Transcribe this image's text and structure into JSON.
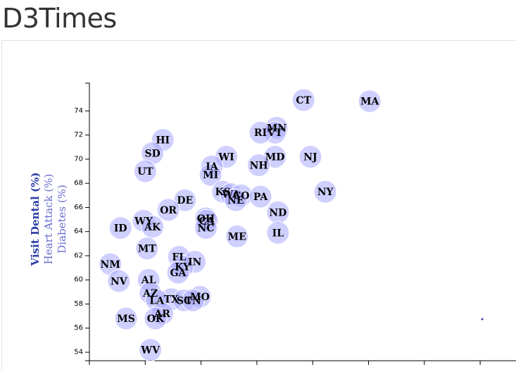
{
  "page": {
    "title": "D3Times"
  },
  "chart_data": {
    "type": "scatter",
    "title": "",
    "xlabel": "",
    "ylabels": [
      {
        "label": "Visit Dental (%)",
        "active": true
      },
      {
        "label": "Heart Attack (%)",
        "active": false
      },
      {
        "label": "Diabetes (%)",
        "active": false
      }
    ],
    "ylim": [
      53.3,
      76.3
    ],
    "xlim": [
      0,
      10
    ],
    "yticks": [
      54,
      56,
      58,
      60,
      62,
      64,
      66,
      68,
      70,
      72,
      74
    ],
    "xticks_count": 8,
    "grid": false,
    "marker_color": "#aaaaff",
    "points": [
      {
        "label": "CT",
        "x": 5.02,
        "y": 74.9
      },
      {
        "label": "MA",
        "x": 6.57,
        "y": 74.8
      },
      {
        "label": "MN",
        "x": 4.39,
        "y": 72.6
      },
      {
        "label": "VT",
        "x": 4.35,
        "y": 72.2
      },
      {
        "label": "RI",
        "x": 4.01,
        "y": 72.2
      },
      {
        "label": "HI",
        "x": 1.72,
        "y": 71.6
      },
      {
        "label": "SD",
        "x": 1.48,
        "y": 70.5
      },
      {
        "label": "MD",
        "x": 4.35,
        "y": 70.2
      },
      {
        "label": "NJ",
        "x": 5.18,
        "y": 70.2
      },
      {
        "label": "WI",
        "x": 3.21,
        "y": 70.2
      },
      {
        "label": "IA",
        "x": 2.87,
        "y": 69.4
      },
      {
        "label": "NH",
        "x": 3.97,
        "y": 69.5
      },
      {
        "label": "UT",
        "x": 1.31,
        "y": 69.0
      },
      {
        "label": "MI",
        "x": 2.84,
        "y": 68.7
      },
      {
        "label": "NY",
        "x": 5.53,
        "y": 67.3
      },
      {
        "label": "KS",
        "x": 3.13,
        "y": 67.3
      },
      {
        "label": "WA",
        "x": 3.32,
        "y": 67.1
      },
      {
        "label": "CO",
        "x": 3.56,
        "y": 67.0
      },
      {
        "label": "PA",
        "x": 4.01,
        "y": 66.9
      },
      {
        "label": "NE",
        "x": 3.43,
        "y": 66.6
      },
      {
        "label": "DE",
        "x": 2.24,
        "y": 66.6
      },
      {
        "label": "OR",
        "x": 1.85,
        "y": 65.8
      },
      {
        "label": "ND",
        "x": 4.42,
        "y": 65.6
      },
      {
        "label": "OH",
        "x": 2.73,
        "y": 65.1
      },
      {
        "label": "CA",
        "x": 2.75,
        "y": 64.9
      },
      {
        "label": "WY",
        "x": 1.27,
        "y": 64.9
      },
      {
        "label": "AK",
        "x": 1.48,
        "y": 64.4
      },
      {
        "label": "ID",
        "x": 0.73,
        "y": 64.3
      },
      {
        "label": "NC",
        "x": 2.73,
        "y": 64.3
      },
      {
        "label": "IL",
        "x": 4.42,
        "y": 63.9
      },
      {
        "label": "ME",
        "x": 3.46,
        "y": 63.6
      },
      {
        "label": "MT",
        "x": 1.35,
        "y": 62.6
      },
      {
        "label": "FL",
        "x": 2.1,
        "y": 61.9
      },
      {
        "label": "IN",
        "x": 2.47,
        "y": 61.5
      },
      {
        "label": "NM",
        "x": 0.49,
        "y": 61.3
      },
      {
        "label": "KY",
        "x": 2.18,
        "y": 61.1
      },
      {
        "label": "GA",
        "x": 2.08,
        "y": 60.6
      },
      {
        "label": "AL",
        "x": 1.39,
        "y": 60.0
      },
      {
        "label": "NV",
        "x": 0.69,
        "y": 59.9
      },
      {
        "label": "AZ",
        "x": 1.43,
        "y": 58.9
      },
      {
        "label": "MO",
        "x": 2.59,
        "y": 58.6
      },
      {
        "label": "TX",
        "x": 1.92,
        "y": 58.4
      },
      {
        "label": "SC",
        "x": 2.22,
        "y": 58.3
      },
      {
        "label": "TN",
        "x": 2.43,
        "y": 58.3
      },
      {
        "label": "LA",
        "x": 1.58,
        "y": 58.3
      },
      {
        "label": "AR",
        "x": 1.71,
        "y": 57.2
      },
      {
        "label": "MS",
        "x": 0.86,
        "y": 56.8
      },
      {
        "label": "OK",
        "x": 1.55,
        "y": 56.8
      },
      {
        "label": "WV",
        "x": 1.43,
        "y": 54.2
      }
    ]
  }
}
